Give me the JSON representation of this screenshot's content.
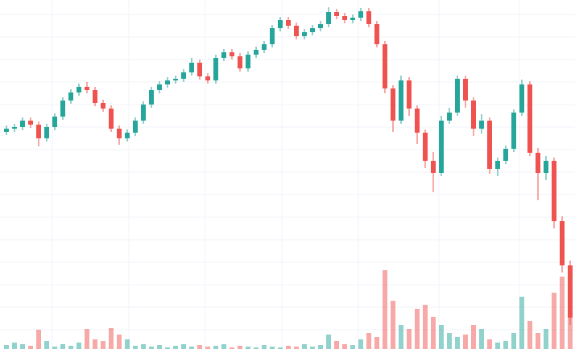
{
  "chart_data": {
    "type": "candlestick",
    "up_color": "#26a69a",
    "down_color": "#ef5350",
    "ylim": [
      0,
      434
    ],
    "y2lim": [
      0,
      434
    ],
    "open": [
      270,
      274,
      276,
      284,
      279,
      262,
      276,
      289,
      309,
      319,
      326,
      322,
      306,
      299,
      274,
      262,
      269,
      284,
      304,
      322,
      329,
      334,
      336,
      344,
      356,
      339,
      334,
      362,
      369,
      364,
      349,
      366,
      372,
      379,
      399,
      409,
      402,
      389,
      394,
      399,
      404,
      419,
      414,
      409,
      412,
      420,
      404,
      379,
      324,
      284,
      334,
      299,
      269,
      234,
      219,
      284,
      294,
      336,
      309,
      274,
      284,
      224,
      234,
      249,
      294,
      329,
      244,
      219,
      234,
      159,
      104
    ],
    "high": [
      278,
      280,
      288,
      288,
      283,
      280,
      293,
      313,
      323,
      330,
      332,
      326,
      310,
      303,
      278,
      273,
      288,
      308,
      326,
      333,
      338,
      340,
      348,
      362,
      360,
      343,
      366,
      373,
      373,
      368,
      370,
      376,
      383,
      403,
      413,
      413,
      406,
      398,
      403,
      408,
      425,
      423,
      418,
      416,
      424,
      424,
      408,
      383,
      328,
      340,
      338,
      303,
      273,
      245,
      290,
      300,
      340,
      340,
      313,
      292,
      288,
      238,
      253,
      298,
      335,
      333,
      250,
      240,
      238,
      165,
      110
    ],
    "low": [
      266,
      270,
      272,
      275,
      252,
      258,
      272,
      285,
      305,
      315,
      318,
      302,
      295,
      270,
      254,
      258,
      265,
      280,
      300,
      318,
      325,
      330,
      332,
      340,
      335,
      330,
      330,
      358,
      360,
      345,
      345,
      362,
      368,
      375,
      395,
      398,
      385,
      385,
      390,
      395,
      400,
      410,
      405,
      405,
      408,
      400,
      375,
      318,
      270,
      280,
      290,
      255,
      225,
      195,
      215,
      280,
      290,
      300,
      265,
      268,
      218,
      215,
      230,
      245,
      290,
      240,
      185,
      210,
      150,
      95,
      30
    ],
    "close": [
      274,
      276,
      284,
      279,
      262,
      276,
      289,
      309,
      319,
      326,
      322,
      306,
      299,
      274,
      262,
      269,
      284,
      304,
      322,
      329,
      334,
      336,
      344,
      356,
      339,
      334,
      362,
      369,
      364,
      349,
      366,
      372,
      379,
      399,
      409,
      402,
      389,
      394,
      399,
      404,
      419,
      414,
      409,
      412,
      420,
      404,
      379,
      324,
      284,
      334,
      299,
      269,
      234,
      219,
      284,
      294,
      336,
      309,
      274,
      284,
      224,
      234,
      249,
      294,
      329,
      244,
      219,
      234,
      159,
      104,
      39
    ],
    "volume": [
      5,
      8,
      6,
      4,
      24,
      10,
      3,
      6,
      4,
      8,
      25,
      12,
      10,
      26,
      18,
      12,
      4,
      6,
      3,
      5,
      2,
      4,
      6,
      3,
      5,
      3,
      4,
      6,
      2,
      4,
      3,
      2,
      5,
      3,
      2,
      4,
      3,
      6,
      3,
      5,
      18,
      10,
      6,
      5,
      12,
      20,
      15,
      98,
      60,
      30,
      25,
      50,
      55,
      40,
      30,
      20,
      15,
      18,
      30,
      25,
      12,
      8,
      10,
      20,
      65,
      35,
      20,
      25,
      70,
      90,
      45
    ]
  }
}
